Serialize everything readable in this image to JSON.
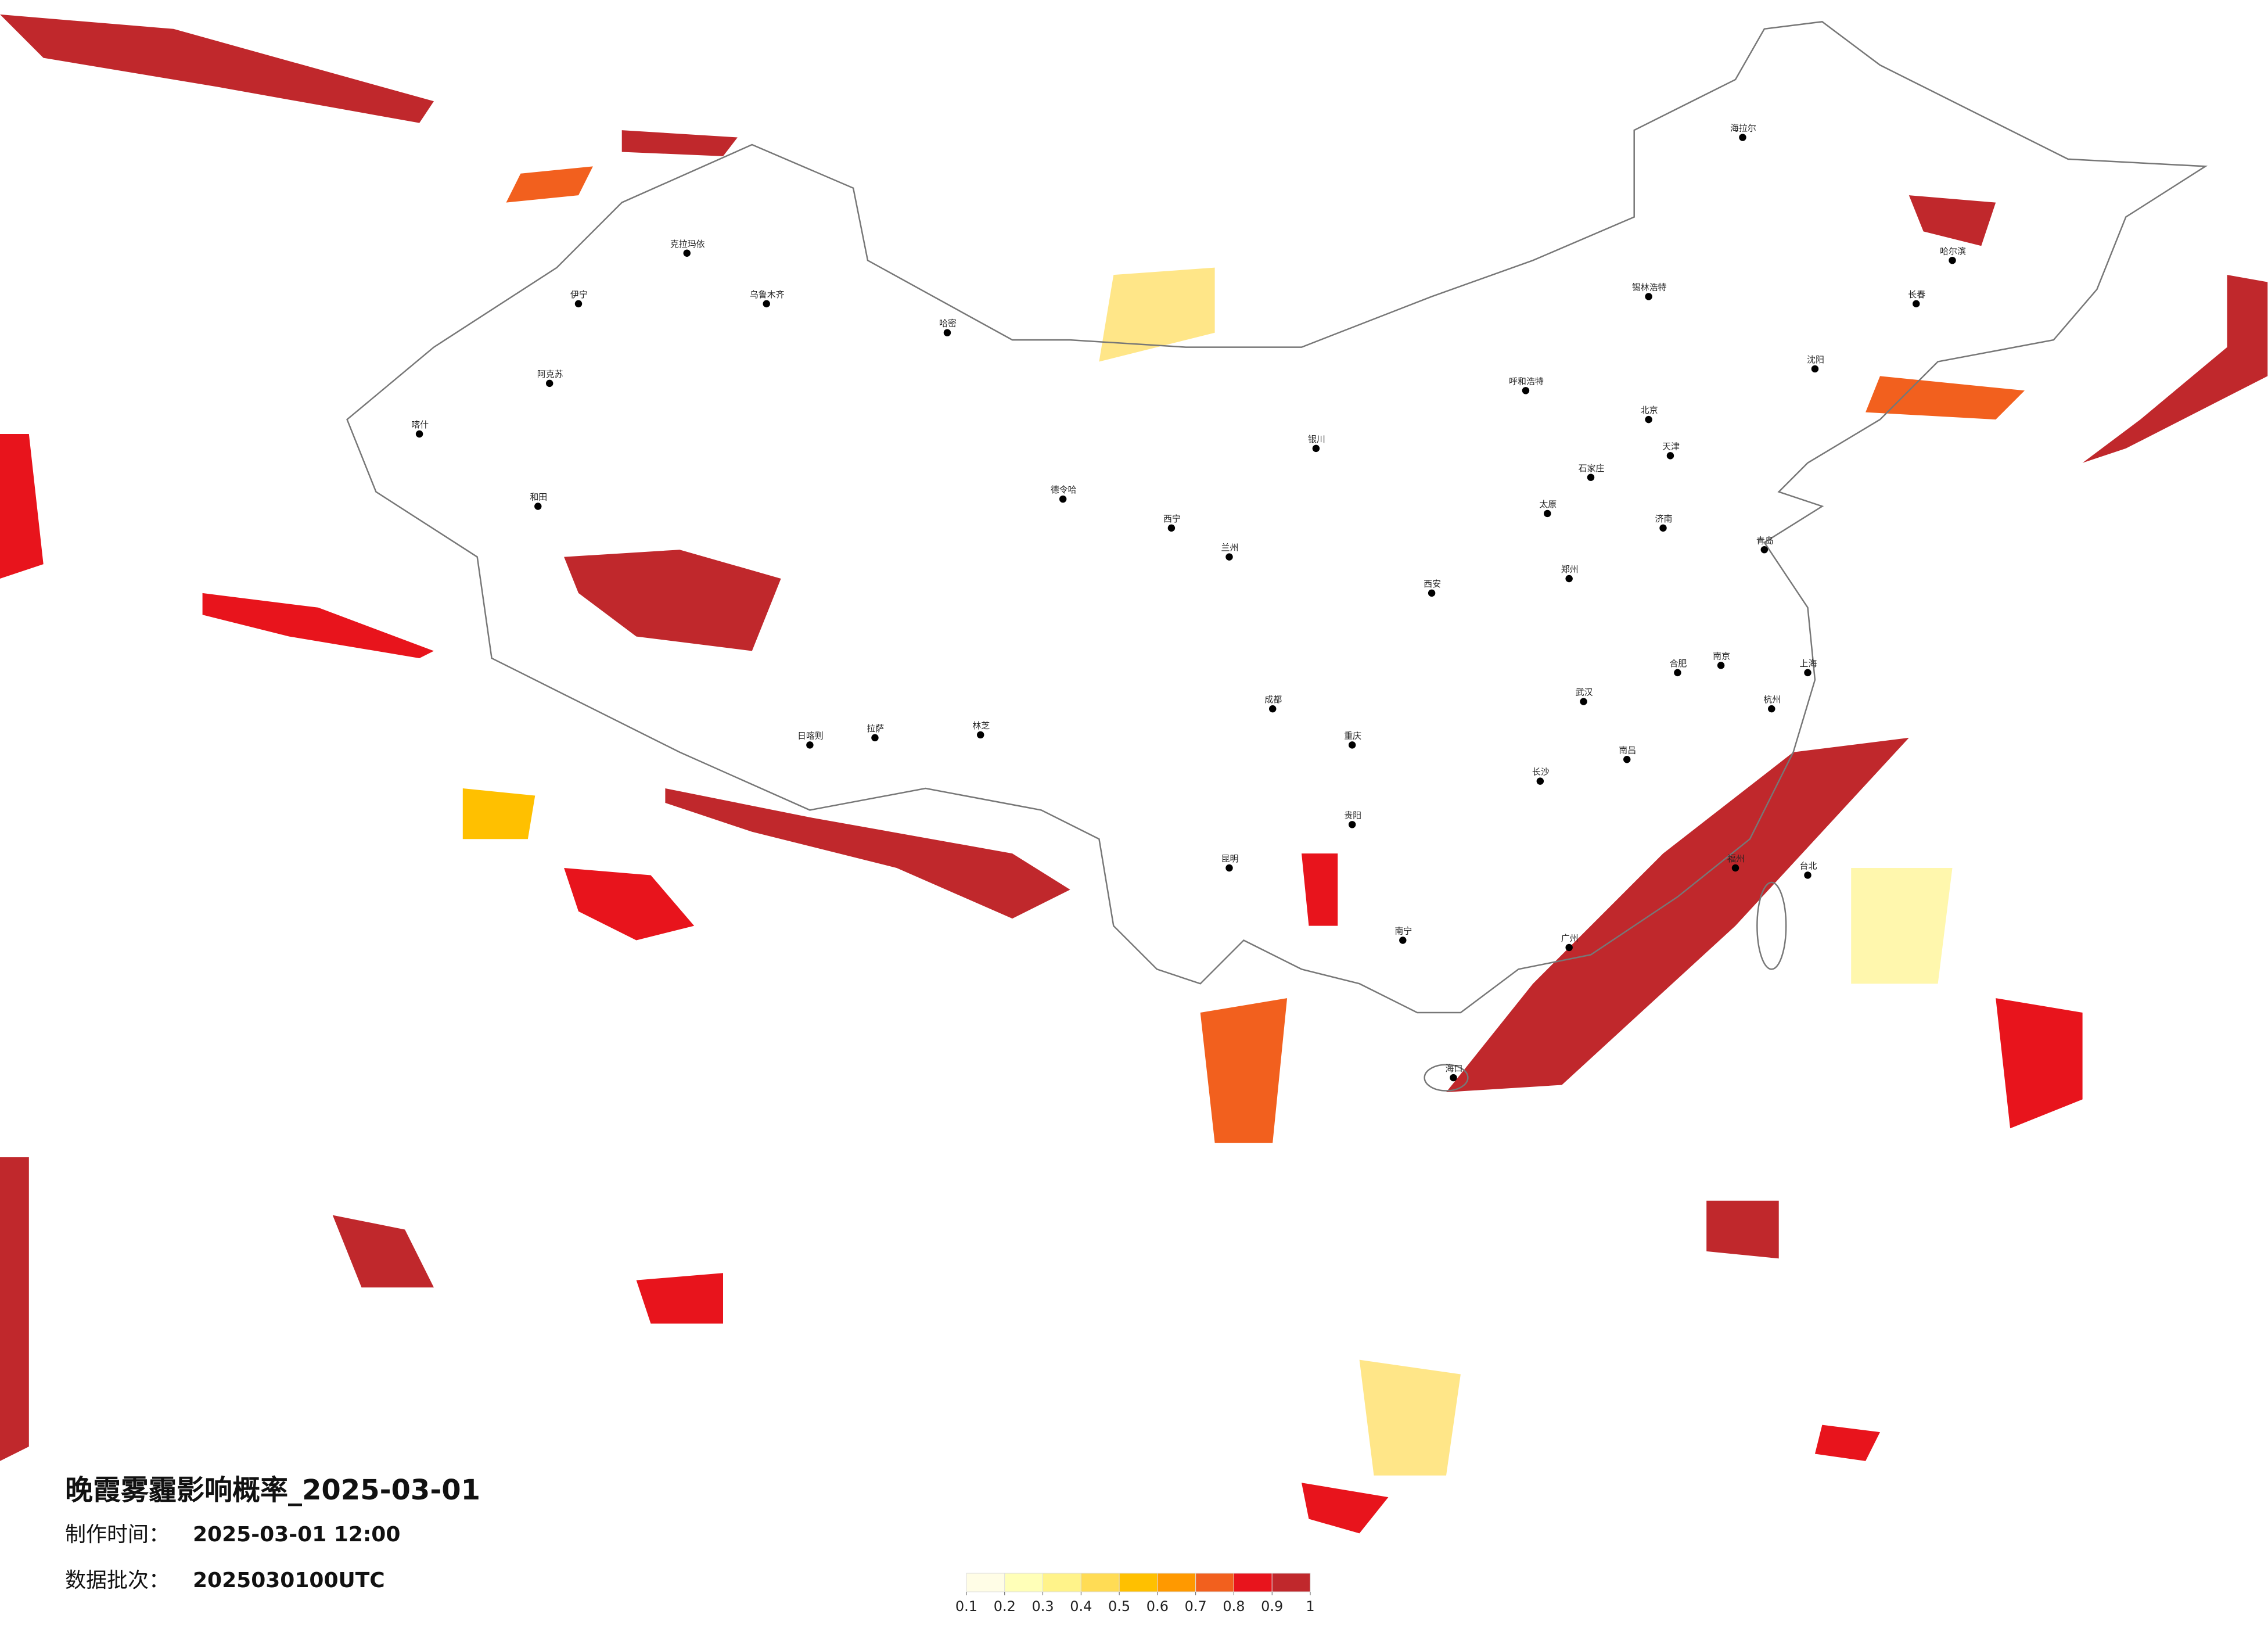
{
  "title": "晚霞雾霾影响概率_2025-03-01",
  "production_time": {
    "label": "制作时间：",
    "value": "2025-03-01 12:00"
  },
  "data_batch": {
    "label": "数据批次：",
    "value": "2025030100UTC"
  },
  "legend": {
    "colors": [
      "#fffde6",
      "#ffffb8",
      "#fff38a",
      "#ffdc55",
      "#ffc000",
      "#ff9900",
      "#f2601e",
      "#e8141c",
      "#c0282c"
    ],
    "ticks": [
      0.1,
      0.2,
      0.3,
      0.4,
      0.5,
      0.6,
      0.7,
      0.8,
      0.9,
      1
    ]
  },
  "cities": [
    "克拉玛依",
    "乌鲁木齐",
    "哈密",
    "伊宁",
    "阿克苏",
    "喀什",
    "和田",
    "拉萨",
    "日喀则",
    "林芝",
    "德令哈",
    "西宁",
    "兰州",
    "银川",
    "呼和浩特",
    "北京",
    "天津",
    "石家庄",
    "太原",
    "西安",
    "郑州",
    "济南",
    "青岛",
    "南京",
    "上海",
    "杭州",
    "合肥",
    "武汉",
    "长沙",
    "南昌",
    "福州",
    "广州",
    "南宁",
    "贵阳",
    "昆明",
    "成都",
    "重庆",
    "沈阳",
    "长春",
    "哈尔滨",
    "海拉尔",
    "台北",
    "海口",
    "锡林浩特"
  ]
}
